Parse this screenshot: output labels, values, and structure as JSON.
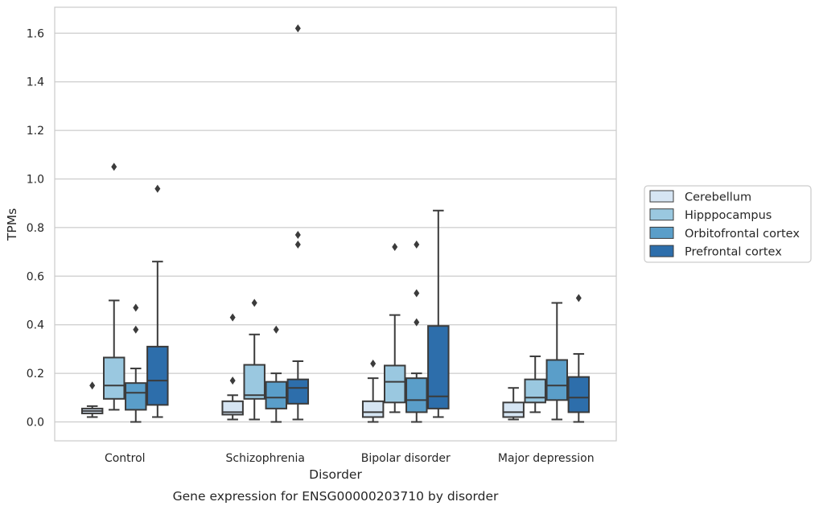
{
  "chart_data": {
    "type": "box",
    "title": "Gene expression for ENSG00000203710 by disorder",
    "xlabel": "Disorder",
    "ylabel": "TPMs",
    "ylim": [
      -0.08,
      1.7
    ],
    "yticks": [
      "0.0",
      "0.2",
      "0.4",
      "0.6",
      "0.8",
      "1.0",
      "1.2",
      "1.4",
      "1.6"
    ],
    "grid": "horizontal",
    "legend_position": "right",
    "categories": [
      "Control",
      "Schizophrenia",
      "Bipolar disorder",
      "Major depression"
    ],
    "series": [
      {
        "name": "Cerebellum",
        "color": "#d6e5f3",
        "boxes": [
          {
            "whislo": 0.02,
            "q1": 0.035,
            "med": 0.045,
            "q3": 0.055,
            "whishi": 0.065,
            "fliers": [
              0.15
            ]
          },
          {
            "whislo": 0.01,
            "q1": 0.03,
            "med": 0.04,
            "q3": 0.085,
            "whishi": 0.11,
            "fliers": [
              0.17,
              0.43
            ]
          },
          {
            "whislo": 0.0,
            "q1": 0.02,
            "med": 0.04,
            "q3": 0.085,
            "whishi": 0.18,
            "fliers": [
              0.24
            ]
          },
          {
            "whislo": 0.01,
            "q1": 0.02,
            "med": 0.04,
            "q3": 0.08,
            "whishi": 0.14,
            "fliers": []
          }
        ]
      },
      {
        "name": "Hipppocampus",
        "color": "#9ac8e0",
        "boxes": [
          {
            "whislo": 0.05,
            "q1": 0.095,
            "med": 0.15,
            "q3": 0.265,
            "whishi": 0.5,
            "fliers": [
              1.05
            ]
          },
          {
            "whislo": 0.01,
            "q1": 0.095,
            "med": 0.11,
            "q3": 0.235,
            "whishi": 0.36,
            "fliers": [
              0.49
            ]
          },
          {
            "whislo": 0.04,
            "q1": 0.08,
            "med": 0.165,
            "q3": 0.232,
            "whishi": 0.44,
            "fliers": [
              0.72
            ]
          },
          {
            "whislo": 0.04,
            "q1": 0.08,
            "med": 0.1,
            "q3": 0.175,
            "whishi": 0.27,
            "fliers": []
          }
        ]
      },
      {
        "name": "Orbitofrontal cortex",
        "color": "#5a9ec9",
        "boxes": [
          {
            "whislo": 0.0,
            "q1": 0.05,
            "med": 0.12,
            "q3": 0.16,
            "whishi": 0.22,
            "fliers": [
              0.38,
              0.47
            ]
          },
          {
            "whislo": 0.0,
            "q1": 0.055,
            "med": 0.1,
            "q3": 0.165,
            "whishi": 0.2,
            "fliers": [
              0.38
            ]
          },
          {
            "whislo": 0.0,
            "q1": 0.04,
            "med": 0.09,
            "q3": 0.18,
            "whishi": 0.2,
            "fliers": [
              0.41,
              0.53,
              0.73
            ]
          },
          {
            "whislo": 0.01,
            "q1": 0.09,
            "med": 0.15,
            "q3": 0.255,
            "whishi": 0.49,
            "fliers": []
          }
        ]
      },
      {
        "name": "Prefrontal cortex",
        "color": "#2d6eab",
        "boxes": [
          {
            "whislo": 0.02,
            "q1": 0.07,
            "med": 0.17,
            "q3": 0.31,
            "whishi": 0.66,
            "fliers": [
              0.96
            ]
          },
          {
            "whislo": 0.01,
            "q1": 0.075,
            "med": 0.14,
            "q3": 0.175,
            "whishi": 0.25,
            "fliers": [
              0.73,
              0.77,
              1.62
            ]
          },
          {
            "whislo": 0.02,
            "q1": 0.055,
            "med": 0.105,
            "q3": 0.395,
            "whishi": 0.87,
            "fliers": []
          },
          {
            "whislo": 0.0,
            "q1": 0.04,
            "med": 0.1,
            "q3": 0.185,
            "whishi": 0.28,
            "fliers": [
              0.51
            ]
          }
        ]
      }
    ]
  }
}
